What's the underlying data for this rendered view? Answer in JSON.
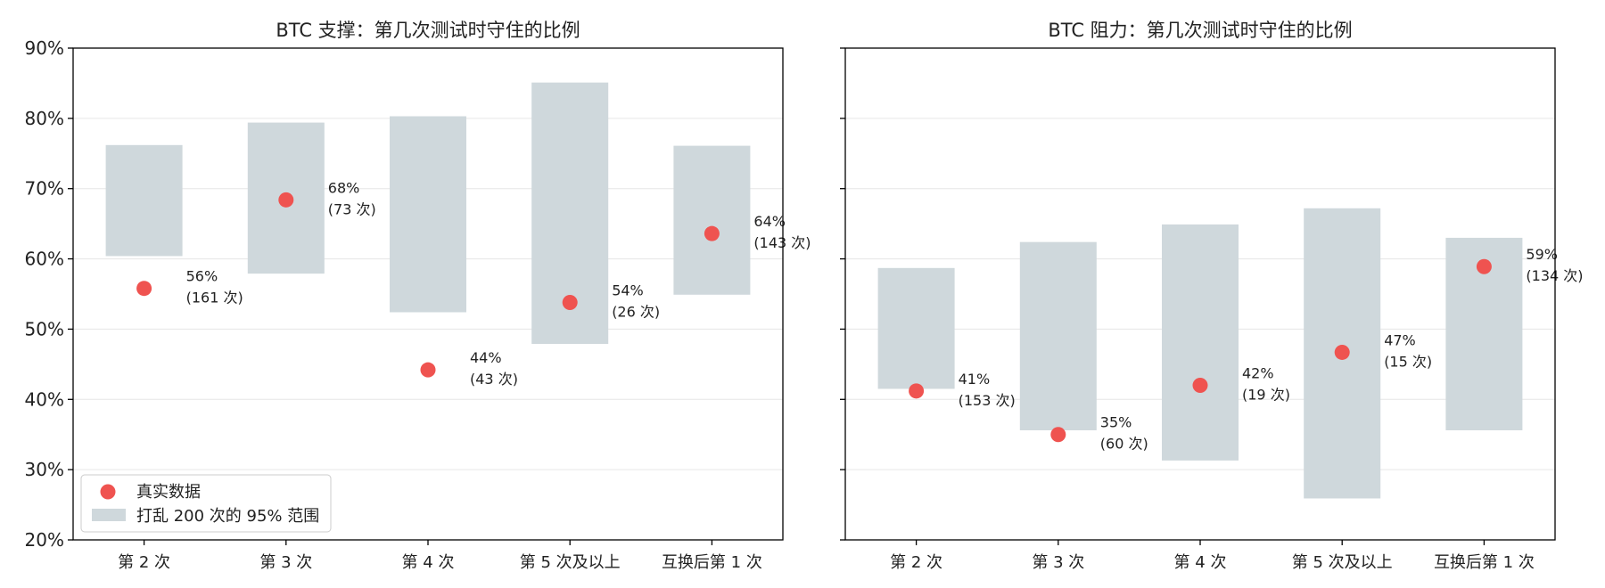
{
  "colors": {
    "point": "#EF5350",
    "band": "#CFD8DC",
    "grid": "#E6E6E6",
    "axis": "#000000"
  },
  "legend": {
    "items": [
      {
        "label": "真实数据",
        "kind": "point"
      },
      {
        "label": "打乱 200 次的 95% 范围",
        "kind": "band"
      }
    ],
    "placement": "lower-left"
  },
  "chart_data": [
    {
      "type": "scatter",
      "title": "BTC 支撑：第几次测试时守住的比例",
      "categories": [
        "第 2 次",
        "第 3 次",
        "第 4 次",
        "第 5 次及以上",
        "互换后第 1 次"
      ],
      "ylim": [
        20,
        90
      ],
      "yticks": [
        20,
        30,
        40,
        50,
        60,
        70,
        80,
        90
      ],
      "ytick_labels": [
        "20%",
        "30%",
        "40%",
        "50%",
        "60%",
        "70%",
        "80%",
        "90%"
      ],
      "grid": "horizontal",
      "series": [
        {
          "name": "真实数据",
          "values": [
            55.8,
            68.4,
            44.2,
            53.8,
            63.6
          ]
        }
      ],
      "bands": [
        {
          "low": 60.4,
          "high": 76.2
        },
        {
          "low": 57.9,
          "high": 79.4
        },
        {
          "low": 52.4,
          "high": 80.3
        },
        {
          "low": 47.9,
          "high": 85.1
        },
        {
          "low": 54.9,
          "high": 76.1
        }
      ],
      "labels": [
        {
          "pct": "56%",
          "n": "(161 次)"
        },
        {
          "pct": "68%",
          "n": "(73 次)"
        },
        {
          "pct": "44%",
          "n": "(43 次)"
        },
        {
          "pct": "54%",
          "n": "(26 次)"
        },
        {
          "pct": "64%",
          "n": "(143 次)"
        }
      ],
      "show_legend": true,
      "show_ytick_labels": true
    },
    {
      "type": "scatter",
      "title": "BTC 阻力：第几次测试时守住的比例",
      "categories": [
        "第 2 次",
        "第 3 次",
        "第 4 次",
        "第 5 次及以上",
        "互换后第 1 次"
      ],
      "ylim": [
        20,
        90
      ],
      "yticks": [
        20,
        30,
        40,
        50,
        60,
        70,
        80,
        90
      ],
      "ytick_labels": [
        "",
        "",
        "",
        "",
        "",
        "",
        "",
        ""
      ],
      "grid": "horizontal",
      "series": [
        {
          "name": "真实数据",
          "values": [
            41.2,
            35.0,
            42.0,
            46.7,
            58.9
          ]
        }
      ],
      "bands": [
        {
          "low": 41.5,
          "high": 58.7
        },
        {
          "low": 35.6,
          "high": 62.4
        },
        {
          "low": 31.3,
          "high": 64.9
        },
        {
          "low": 25.9,
          "high": 67.2
        },
        {
          "low": 35.6,
          "high": 63.0
        }
      ],
      "labels": [
        {
          "pct": "41%",
          "n": "(153 次)"
        },
        {
          "pct": "35%",
          "n": "(60 次)"
        },
        {
          "pct": "42%",
          "n": "(19 次)"
        },
        {
          "pct": "47%",
          "n": "(15 次)"
        },
        {
          "pct": "59%",
          "n": "(134 次)"
        }
      ],
      "show_legend": false,
      "show_ytick_labels": false
    }
  ]
}
